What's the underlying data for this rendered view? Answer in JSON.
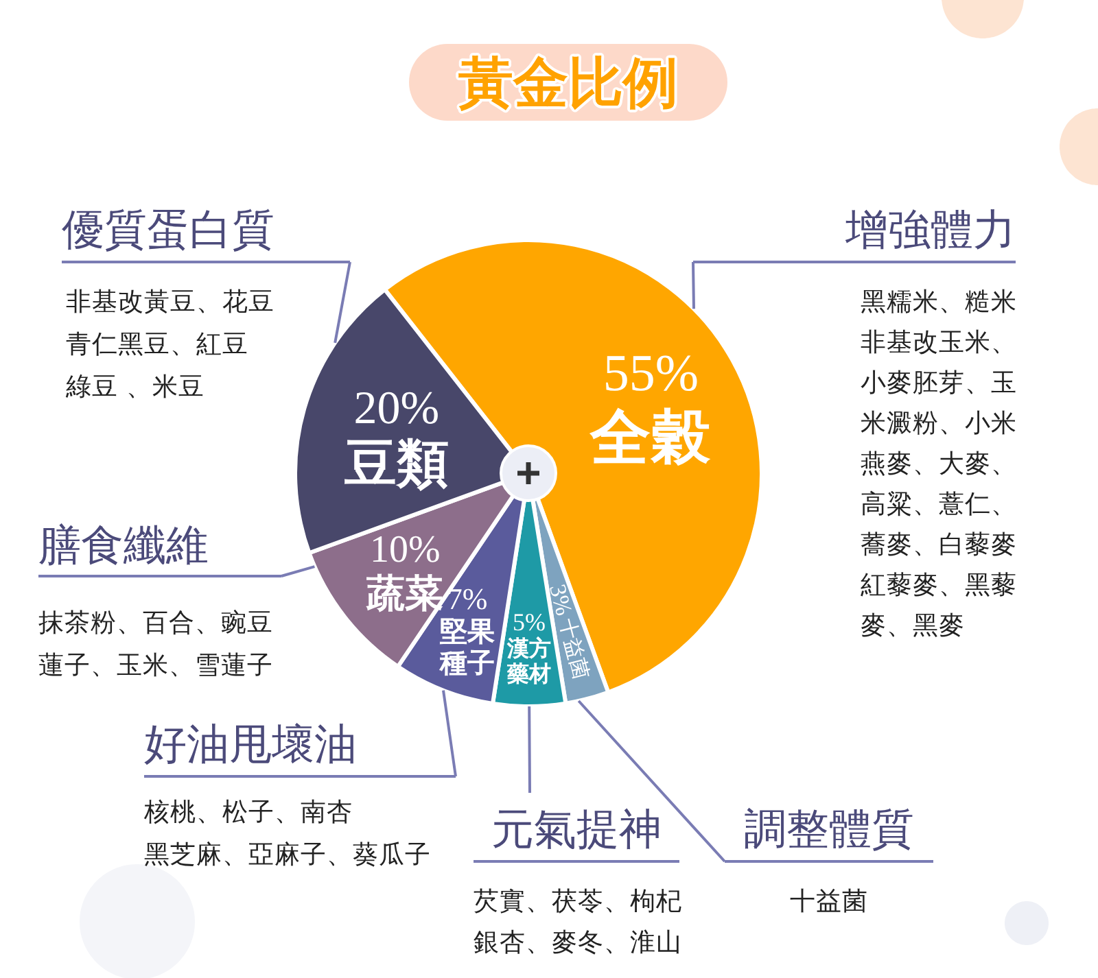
{
  "chart_data": {
    "type": "pie",
    "title": "黃金比例",
    "categories": [
      "全穀",
      "十益菌",
      "漢方藥材",
      "堅果種子",
      "蔬菜",
      "豆類"
    ],
    "values": [
      55,
      3,
      5,
      7,
      10,
      20
    ],
    "colors": [
      "#ffa600",
      "#7ea3bf",
      "#1e9aa6",
      "#5a5b9c",
      "#8d6e8b",
      "#48476a"
    ],
    "value_labels": [
      "55%",
      "3%",
      "5%",
      "7%",
      "10%",
      "20%"
    ],
    "annotations": [
      "優質蛋白質",
      "非基改黃豆、花豆",
      "青仁黑豆、紅豆",
      "綠豆 、米豆",
      "增強體力",
      "黑糯米、糙米",
      "非基改玉米、",
      "小麥胚芽、玉",
      "米澱粉、小米",
      "燕麥、大麥、",
      "高粱、薏仁、",
      "蕎麥、白藜麥",
      "紅藜麥、黑藜",
      "麥、黑麥",
      "膳食纖維",
      "抹茶粉、百合、豌豆",
      "蓮子、玉米、雪蓮子",
      "好油甩壞油",
      "核桃、松子、南杏",
      "黑芝麻、亞麻子、葵瓜子",
      "元氣提神",
      "芡實、茯苓、枸杞",
      "銀杏、麥冬、淮山",
      "調整體質",
      "十益菌"
    ]
  }
}
